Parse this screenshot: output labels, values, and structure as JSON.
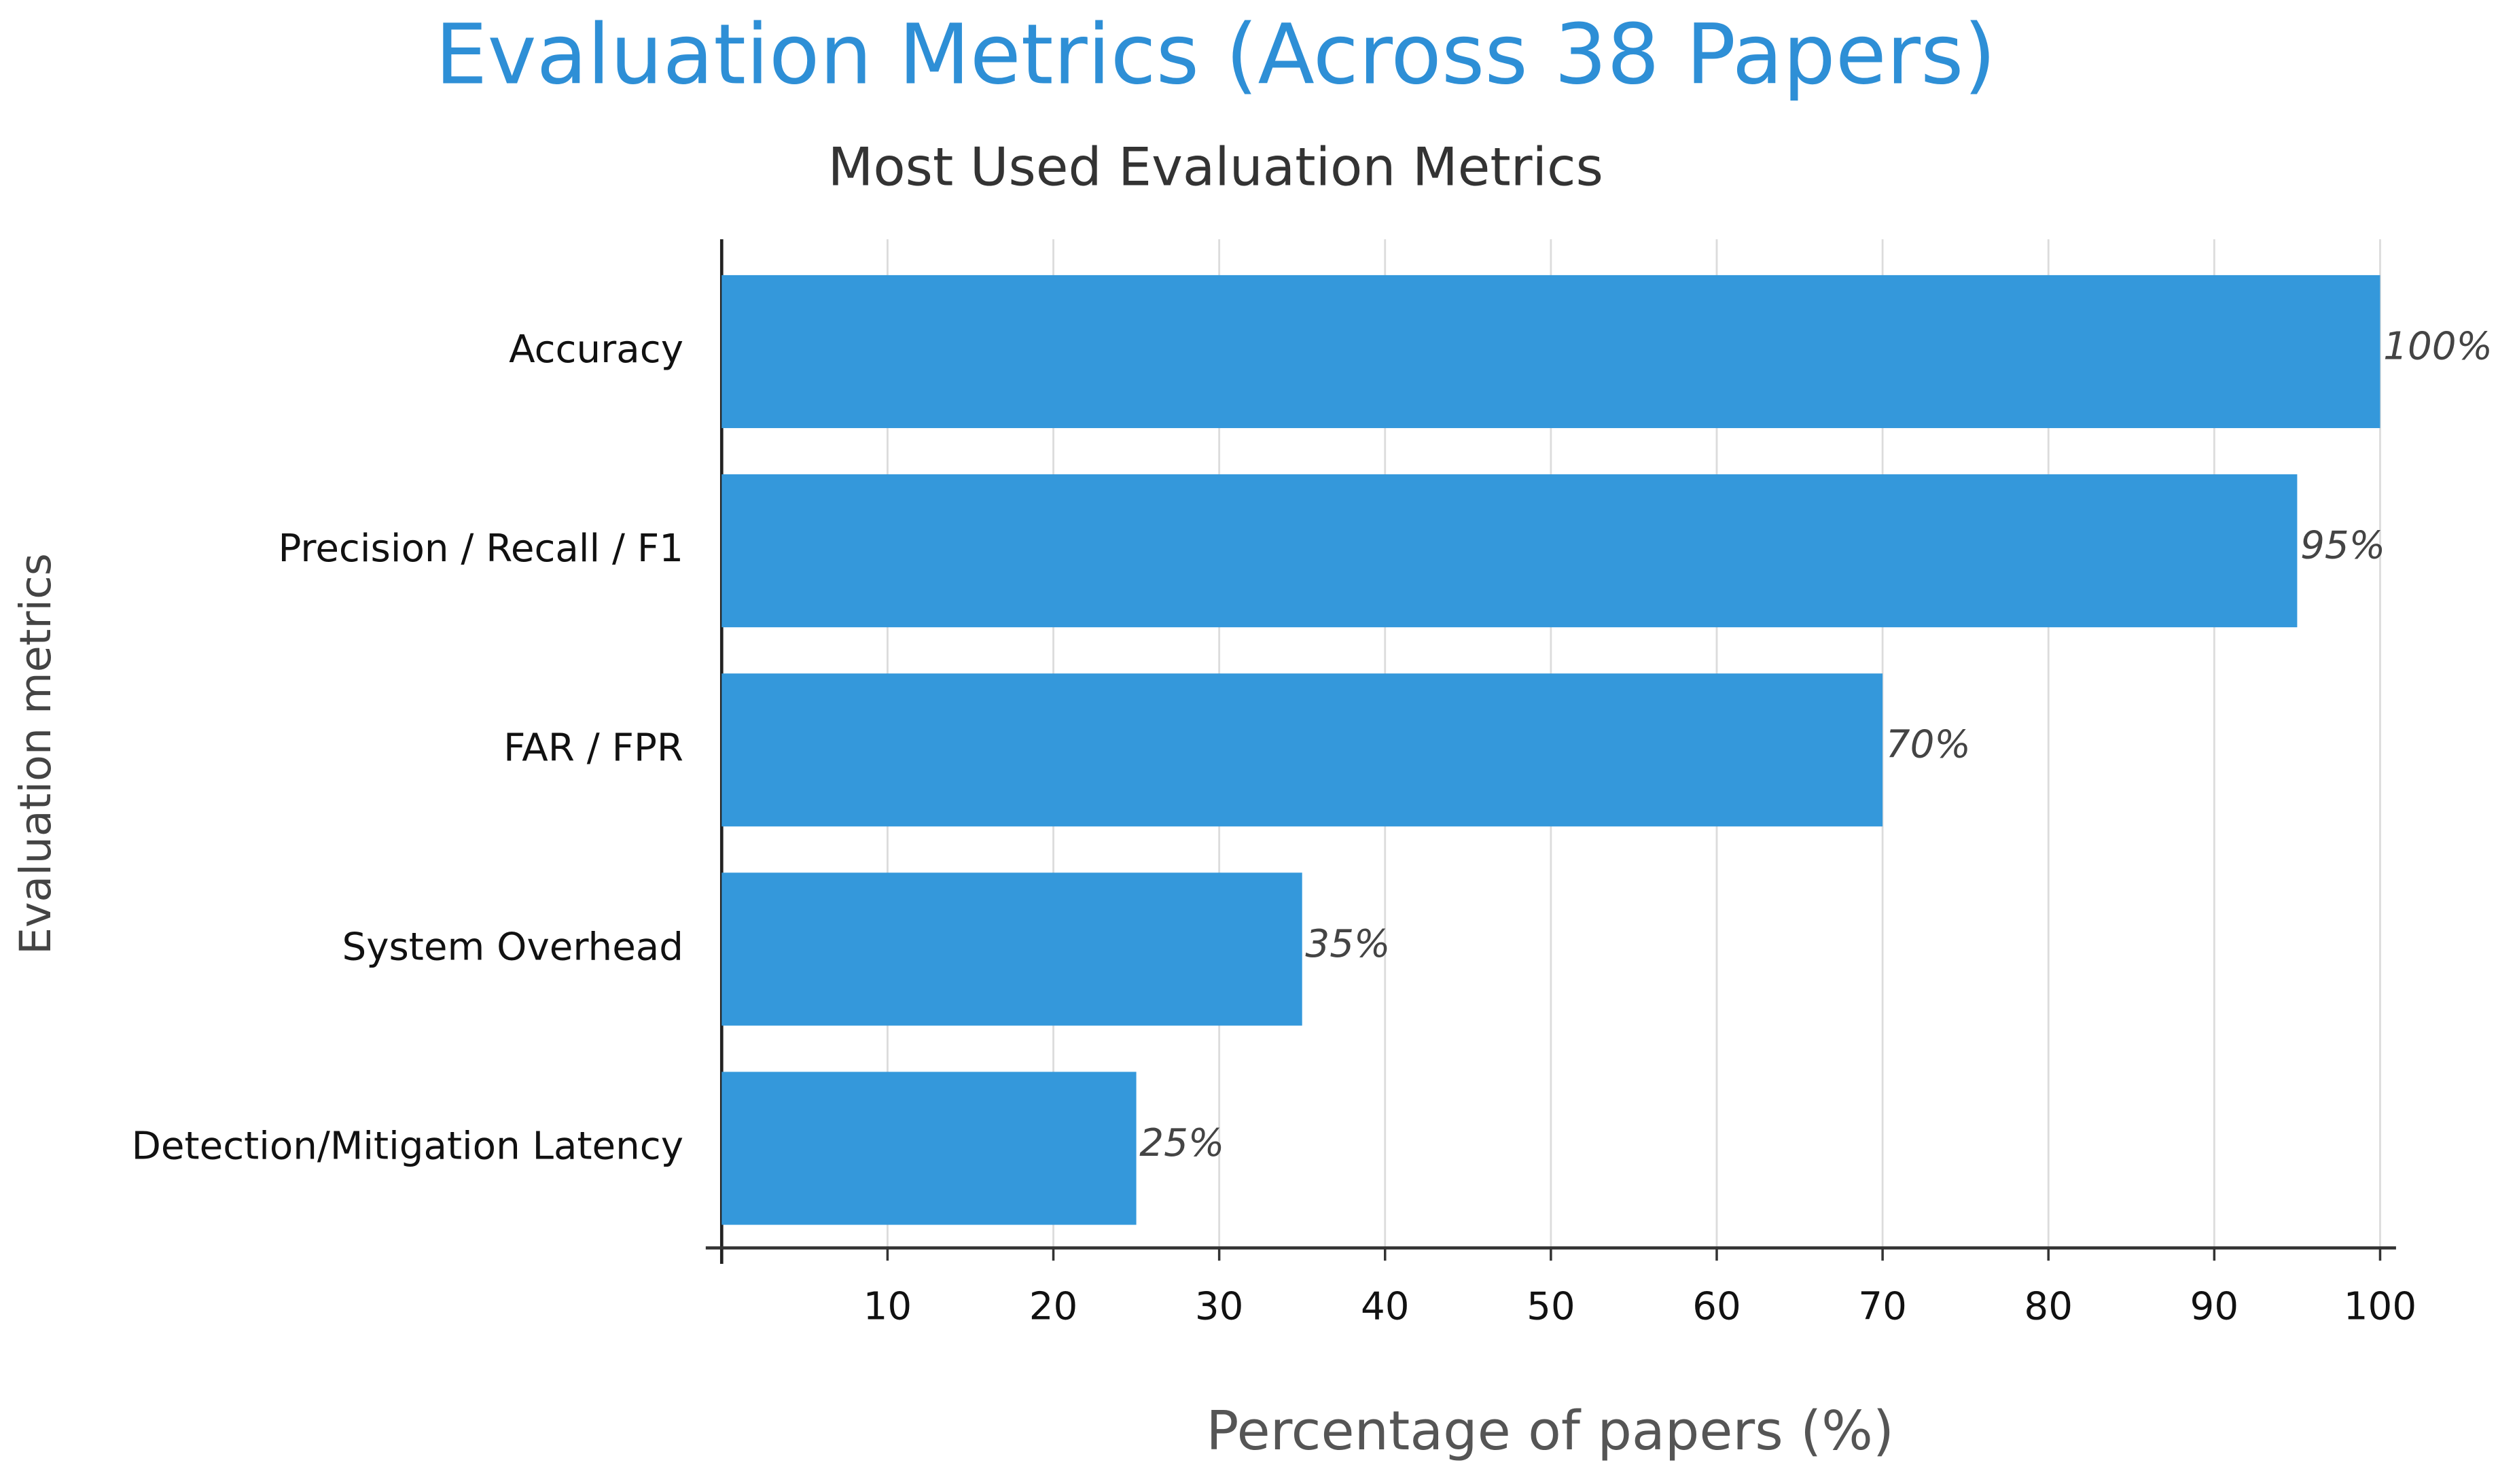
{
  "chart_data": {
    "type": "bar",
    "orientation": "horizontal",
    "title": "Evaluation Metrics (Across 38 Papers)",
    "subtitle": "Most Used Evaluation Metrics",
    "x_label": "Percentage of papers (%)",
    "y_label": "Evaluation metrics",
    "categories": [
      "Accuracy",
      "Precision / Recall / F1",
      "FAR / FPR",
      "System Overhead",
      "Detection/Mitigation Latency"
    ],
    "values": [
      100,
      95,
      70,
      35,
      25
    ],
    "value_labels": [
      "100%",
      "95%",
      "70%",
      "35%",
      "25%"
    ],
    "color": "#3498db",
    "xlim": [
      0,
      100
    ],
    "xticks": [
      10,
      20,
      30,
      40,
      50,
      60,
      70,
      80,
      90,
      100
    ],
    "grid": true
  }
}
